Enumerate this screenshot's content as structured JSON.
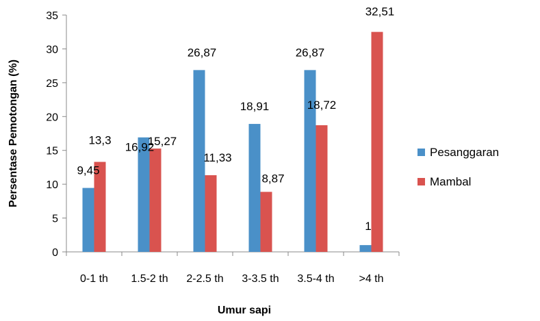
{
  "chart_data": {
    "type": "bar",
    "title": "",
    "xlabel": "Umur sapi",
    "ylabel": "Persentase Pemotongan (%)",
    "ylim": [
      0,
      35
    ],
    "ytick_step": 5,
    "grid": false,
    "legend_position": "right",
    "categories": [
      "0-1 th",
      "1.5-2 th",
      "2-2.5 th",
      "3-3.5 th",
      "3.5-4 th",
      ">4 th"
    ],
    "series": [
      {
        "name": "Pesanggaran",
        "color": "#4a90c8",
        "values": [
          9.45,
          16.92,
          26.87,
          18.91,
          26.87,
          1
        ],
        "labels": [
          "9,45",
          "16,92",
          "26,87",
          "18,91",
          "26,87",
          "1"
        ]
      },
      {
        "name": "Mambal",
        "color": "#d9534f",
        "values": [
          13.3,
          15.27,
          11.33,
          8.87,
          18.72,
          32.51
        ],
        "labels": [
          "13,3",
          "15,27",
          "11,33",
          "8,87",
          "18,72",
          "32,51"
        ]
      }
    ]
  }
}
